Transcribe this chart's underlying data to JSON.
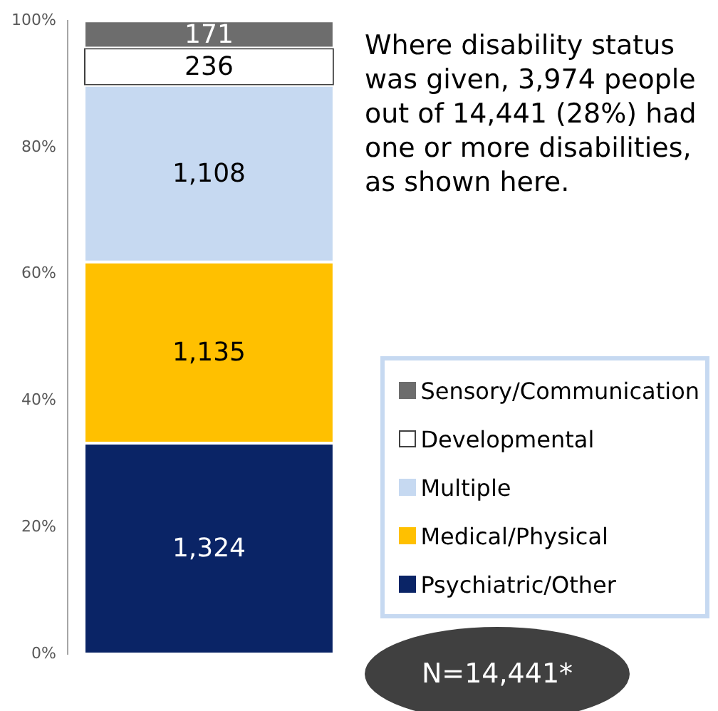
{
  "chart_data": {
    "type": "bar",
    "stacked": true,
    "categories": [
      null
    ],
    "series": [
      {
        "name": "Psychiatric/Other",
        "color": "#0a2466",
        "values": [
          33.3
        ]
      },
      {
        "name": "Medical/Physical",
        "color": "#ffc000",
        "values": [
          28.6
        ]
      },
      {
        "name": "Multiple",
        "color": "#c6d9f1",
        "values": [
          27.9
        ]
      },
      {
        "name": "Developmental",
        "color": "#ffffff",
        "values": [
          5.9
        ]
      },
      {
        "name": "Sensory/Communication",
        "color": "#6d6d6d",
        "values": [
          4.3
        ]
      }
    ],
    "ylim": [
      0,
      100
    ],
    "yticks": [
      {
        "value": 0,
        "label": "0%"
      },
      {
        "value": 20,
        "label": "20%"
      },
      {
        "value": 40,
        "label": "40%"
      },
      {
        "value": 60,
        "label": "60%"
      },
      {
        "value": 80,
        "label": "80%"
      },
      {
        "value": 100,
        "label": "100%"
      }
    ],
    "legend": "bottom right",
    "annotations": [
      "1,324",
      "1,135",
      "1,108",
      "236",
      "171",
      "Where disability status was given, 3,974 people out of 14,441 (28%) had one or more disabilities, as shown here.",
      "N=14,441*"
    ]
  }
}
